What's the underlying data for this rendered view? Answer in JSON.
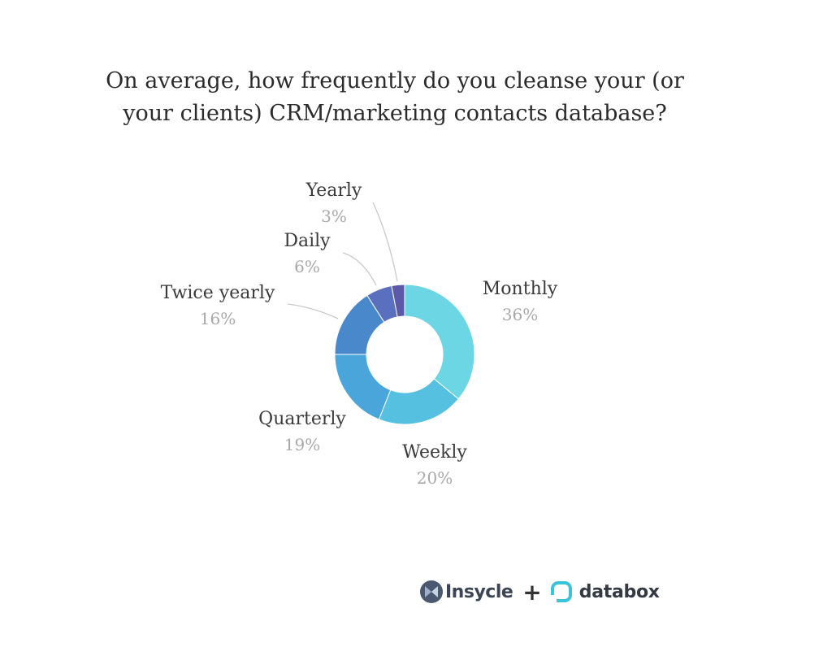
{
  "chart_data": {
    "type": "pie",
    "donut": true,
    "title_lines": [
      "On average, how frequently do you cleanse your (or",
      "your clients) CRM/marketing contacts database?"
    ],
    "slices": [
      {
        "label": "Monthly",
        "value": 36,
        "value_label": "36%",
        "color": "#6dd6e4"
      },
      {
        "label": "Weekly",
        "value": 20,
        "value_label": "20%",
        "color": "#55c0e0"
      },
      {
        "label": "Quarterly",
        "value": 19,
        "value_label": "19%",
        "color": "#4aa6da"
      },
      {
        "label": "Twice yearly",
        "value": 16,
        "value_label": "16%",
        "color": "#4a88cc"
      },
      {
        "label": "Daily",
        "value": 6,
        "value_label": "6%",
        "color": "#5a6fbe"
      },
      {
        "label": "Yearly",
        "value": 3,
        "value_label": "3%",
        "color": "#5c5aa8"
      }
    ],
    "legend": "none",
    "labels": "outside"
  },
  "brands": {
    "insycle": "Insycle",
    "plus": "+",
    "databox": "databox",
    "colors": {
      "insycle_mark": "#4a5870",
      "databox_mark": "#3cc3dc"
    }
  },
  "icons": [
    "insycle-logo-icon",
    "databox-logo-icon"
  ]
}
